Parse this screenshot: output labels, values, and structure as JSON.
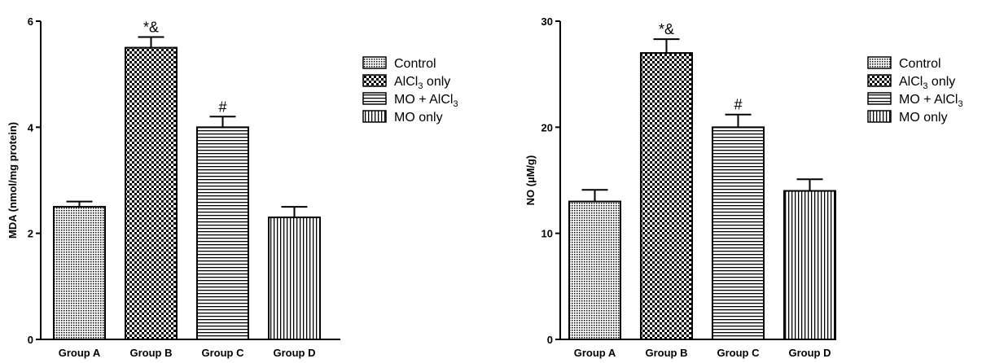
{
  "chart_data": [
    {
      "type": "bar",
      "categories": [
        "Group A",
        "Group B",
        "Group C",
        "Group D"
      ],
      "values": [
        2.5,
        5.5,
        4.0,
        2.3
      ],
      "errors": [
        0.1,
        0.2,
        0.2,
        0.2
      ],
      "annotations": [
        "",
        "*&",
        "#",
        ""
      ],
      "ylabel": "MDA (nmol/mg protein)",
      "ylim": [
        0,
        6
      ],
      "yticks": [
        0,
        2,
        4,
        6
      ],
      "patterns": [
        "fine-dots",
        "checker",
        "horizontal",
        "vertical"
      ],
      "legend": {
        "position": "right",
        "entries": [
          {
            "pre": "Control",
            "sub": "",
            "post": ""
          },
          {
            "pre": "AlCl",
            "sub": "3",
            "post": " only"
          },
          {
            "pre": "MO + AlCl",
            "sub": "3",
            "post": ""
          },
          {
            "pre": "MO only",
            "sub": "",
            "post": ""
          }
        ]
      }
    },
    {
      "type": "bar",
      "categories": [
        "Group A",
        "Group B",
        "Group C",
        "Group D"
      ],
      "values": [
        13,
        27,
        20,
        14
      ],
      "errors": [
        1.1,
        1.3,
        1.2,
        1.1
      ],
      "annotations": [
        "",
        "*&",
        "#",
        ""
      ],
      "ylabel": "NO (µM/g)",
      "ylim": [
        0,
        30
      ],
      "yticks": [
        0,
        10,
        20,
        30
      ],
      "patterns": [
        "fine-dots",
        "checker",
        "horizontal",
        "vertical"
      ],
      "legend": {
        "position": "right",
        "entries": [
          {
            "pre": "Control",
            "sub": "",
            "post": ""
          },
          {
            "pre": "AlCl",
            "sub": "3",
            "post": " only"
          },
          {
            "pre": "MO + AlCl",
            "sub": "3",
            "post": ""
          },
          {
            "pre": "MO only",
            "sub": "",
            "post": ""
          }
        ]
      }
    }
  ]
}
